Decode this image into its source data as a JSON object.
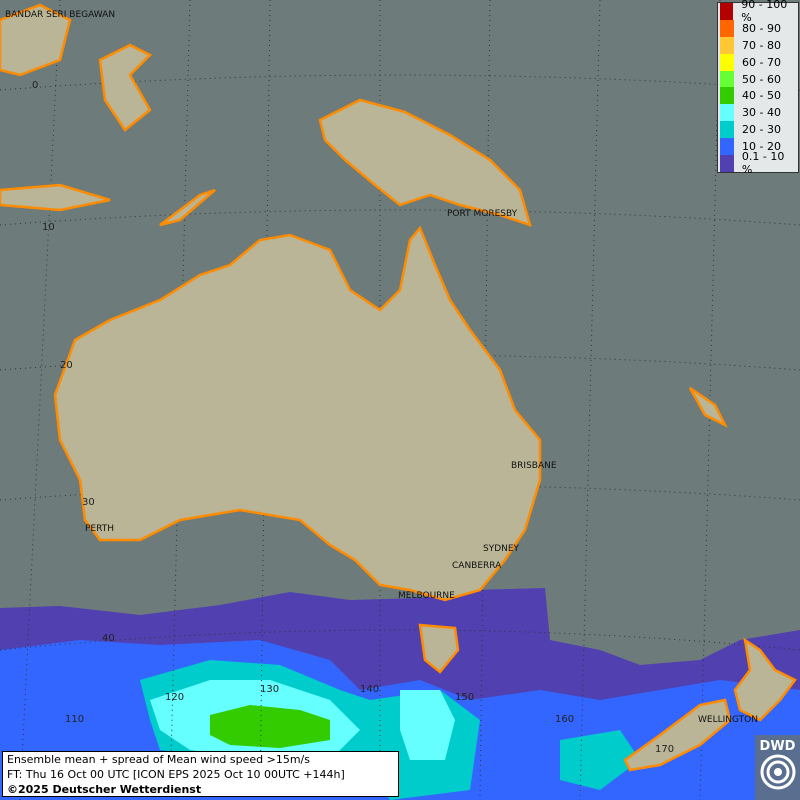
{
  "map": {
    "cities": [
      "BANDAR SERI BEGAWAN",
      "PORT MORESBY",
      "PERTH",
      "BRISBANE",
      "SYDNEY",
      "CANBERRA",
      "MELBOURNE",
      "WELLINGTON"
    ],
    "lat_labels": [
      "0",
      "10",
      "20",
      "30",
      "40"
    ],
    "lon_labels": [
      "110",
      "120",
      "130",
      "140",
      "150",
      "160",
      "170"
    ],
    "colors": {
      "ocean": "#6e7b7b",
      "land": "#b9b596",
      "coast": "#ff8c00"
    }
  },
  "legend": {
    "items": [
      {
        "label": "90 - 100 %",
        "color": "#b30000"
      },
      {
        "label": "80 - 90",
        "color": "#ff6600"
      },
      {
        "label": "70 - 80",
        "color": "#ffc733"
      },
      {
        "label": "60 - 70",
        "color": "#ffff00"
      },
      {
        "label": "50 - 60",
        "color": "#66ff33"
      },
      {
        "label": "40 - 50",
        "color": "#33cc00"
      },
      {
        "label": "30 - 40",
        "color": "#66ffff"
      },
      {
        "label": "20 - 30",
        "color": "#00cccc"
      },
      {
        "label": "10 - 20",
        "color": "#3366ff"
      },
      {
        "label": "0.1 - 10 %",
        "color": "#5040b0"
      }
    ]
  },
  "info": {
    "line1": "Ensemble mean + spread of Mean wind speed >15m/s",
    "line2": "FT: Thu 16 Oct 00 UTC [ICON EPS 2025 Oct 10 00UTC +144h]",
    "line3": "©2025 Deutscher Wetterdienst"
  },
  "logo": {
    "text": "DWD"
  }
}
